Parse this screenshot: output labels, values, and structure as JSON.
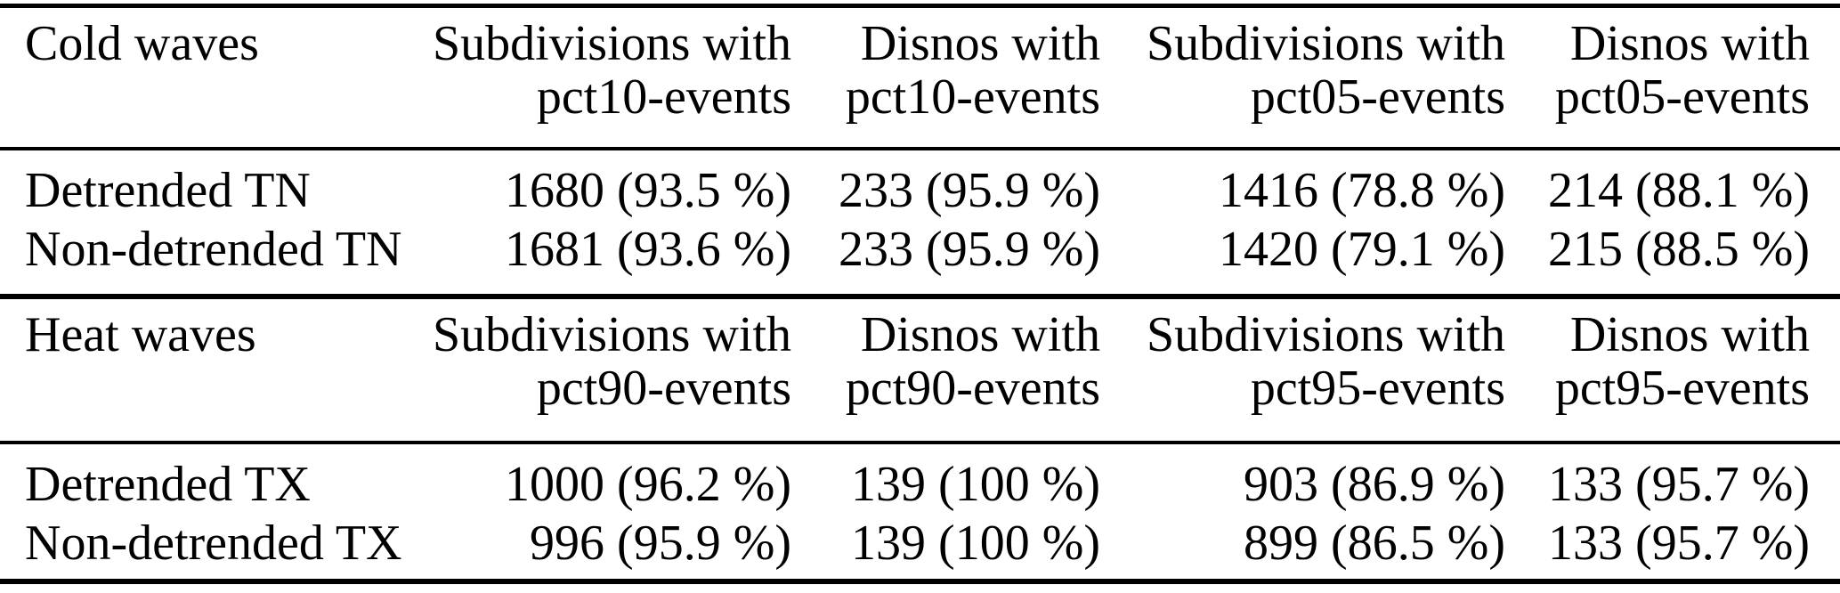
{
  "table": {
    "colors": {
      "text": "#000000",
      "background": "#ffffff",
      "rule": "#000000"
    },
    "sections": [
      {
        "title": "Cold waves",
        "columns": [
          {
            "line1": "Subdivisions with",
            "line2": "pct10-events"
          },
          {
            "line1": "Disnos with",
            "line2": "pct10-events"
          },
          {
            "line1": "Subdivisions with",
            "line2": "pct05-events"
          },
          {
            "line1": "Disnos with",
            "line2": "pct05-events"
          }
        ],
        "rows": [
          {
            "label": "Detrended TN",
            "values": [
              "1680 (93.5 %)",
              "233 (95.9 %)",
              "1416 (78.8 %)",
              "214 (88.1 %)"
            ]
          },
          {
            "label": "Non-detrended TN",
            "values": [
              "1681 (93.6 %)",
              "233 (95.9 %)",
              "1420 (79.1 %)",
              "215 (88.5 %)"
            ]
          }
        ]
      },
      {
        "title": "Heat waves",
        "columns": [
          {
            "line1": "Subdivisions with",
            "line2": "pct90-events"
          },
          {
            "line1": "Disnos with",
            "line2": "pct90-events"
          },
          {
            "line1": "Subdivisions with",
            "line2": "pct95-events"
          },
          {
            "line1": "Disnos with",
            "line2": "pct95-events"
          }
        ],
        "rows": [
          {
            "label": "Detrended TX",
            "values": [
              "1000 (96.2 %)",
              "139 (100 %)",
              "903 (86.9 %)",
              "133 (95.7 %)"
            ]
          },
          {
            "label": "Non-detrended TX",
            "values": [
              "996 (95.9 %)",
              "139 (100 %)",
              "899 (86.5 %)",
              "133 (95.7 %)"
            ]
          }
        ]
      }
    ]
  }
}
